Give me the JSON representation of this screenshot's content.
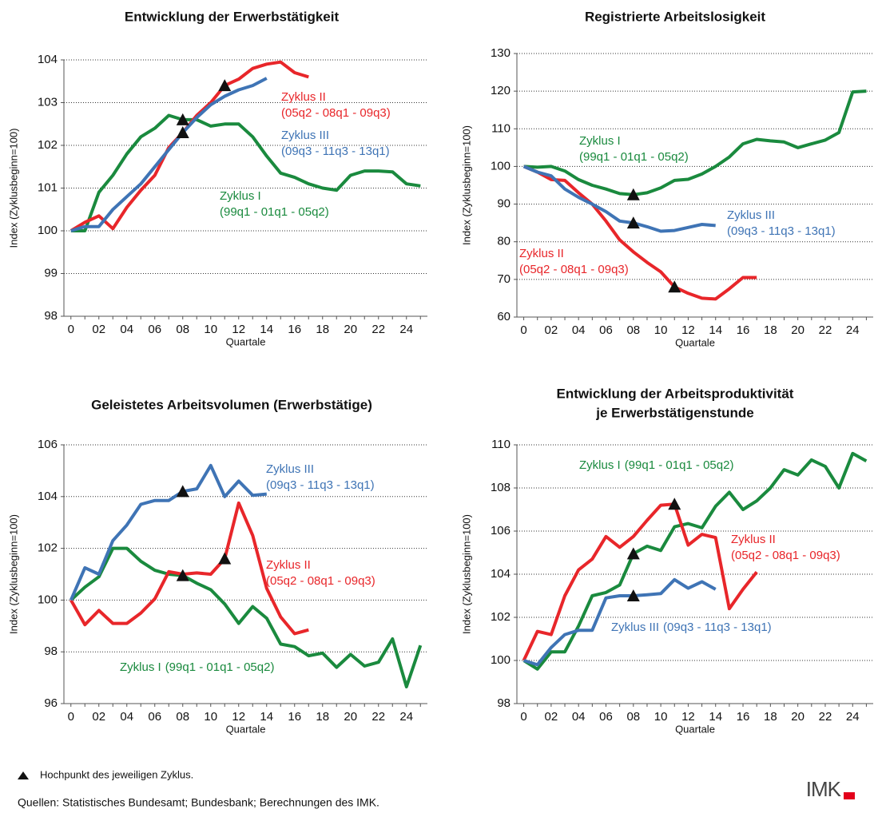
{
  "chart_data": [
    {
      "type": "line",
      "title": "Entwicklung der Erwerbstätigkeit",
      "x_label": "Quartale",
      "y_label": "Index (Zyklusbeginn=100)",
      "x": [
        0,
        1,
        2,
        3,
        4,
        5,
        6,
        7,
        8,
        9,
        10,
        11,
        12,
        13,
        14,
        15,
        16,
        17,
        18,
        19,
        20,
        21,
        22,
        23,
        24,
        25
      ],
      "xlim": [
        -0.5,
        25.5
      ],
      "xticks": [
        0,
        {
          "value": 2,
          "label": "02"
        },
        {
          "value": 4,
          "label": "04"
        },
        {
          "value": 6,
          "label": "06"
        },
        {
          "value": 8,
          "label": "08"
        },
        10,
        12,
        14,
        16,
        18,
        20,
        22,
        24
      ],
      "ylim": [
        98,
        104
      ],
      "yticks": [
        98,
        99,
        100,
        101,
        102,
        103,
        104
      ],
      "grid": true,
      "series": [
        {
          "name": "Zyklus I",
          "sub": "(99q1 - 01q1 - 05q2)",
          "color": "#1a8a3e",
          "peak_x": 8,
          "values": [
            100,
            100,
            100.9,
            101.3,
            101.8,
            102.2,
            102.4,
            102.7,
            102.6,
            102.6,
            102.45,
            102.5,
            102.5,
            102.2,
            101.75,
            101.35,
            101.25,
            101.1,
            101.0,
            100.95,
            101.3,
            101.4,
            101.4,
            101.38,
            101.1,
            101.05
          ]
        },
        {
          "name": "Zyklus II",
          "sub": "(05q2 - 08q1 - 09q3)",
          "color": "#e8262a",
          "peak_x": 11,
          "values": [
            100,
            100.2,
            100.35,
            100.05,
            100.55,
            100.95,
            101.3,
            101.95,
            102.3,
            102.7,
            103.0,
            103.4,
            103.55,
            103.8,
            103.9,
            103.95,
            103.7,
            103.6,
            null,
            null,
            null,
            null,
            null,
            null,
            null,
            null
          ]
        },
        {
          "name": "Zyklus III",
          "sub": "(09q3 - 11q3 - 13q1)",
          "color": "#3f74b5",
          "peak_x": 8,
          "values": [
            100,
            100.1,
            100.1,
            100.5,
            100.8,
            101.1,
            101.5,
            101.9,
            102.3,
            102.65,
            102.95,
            103.15,
            103.3,
            103.4,
            103.57,
            null,
            null,
            null,
            null,
            null,
            null,
            null,
            null,
            null,
            null,
            null
          ]
        }
      ]
    },
    {
      "type": "line",
      "title": "Registrierte Arbeitslosigkeit",
      "x_label": "Quartale",
      "y_label": "Index (Zyklusbeginn=100)",
      "x": [
        0,
        1,
        2,
        3,
        4,
        5,
        6,
        7,
        8,
        9,
        10,
        11,
        12,
        13,
        14,
        15,
        16,
        17,
        18,
        19,
        20,
        21,
        22,
        23,
        24,
        25
      ],
      "xlim": [
        -0.5,
        25.5
      ],
      "xticks": [
        0,
        {
          "value": 2,
          "label": "02"
        },
        {
          "value": 4,
          "label": "04"
        },
        {
          "value": 6,
          "label": "06"
        },
        {
          "value": 8,
          "label": "08"
        },
        10,
        12,
        14,
        16,
        18,
        20,
        22,
        24
      ],
      "ylim": [
        60,
        130
      ],
      "yticks": [
        60,
        70,
        80,
        90,
        100,
        110,
        120,
        130
      ],
      "grid": true,
      "series": [
        {
          "name": "Zyklus I",
          "sub": "(99q1 - 01q1 - 05q2)",
          "color": "#1a8a3e",
          "peak_x": 8,
          "values": [
            100,
            99.8,
            100,
            98.8,
            96.5,
            95,
            94,
            92.8,
            92.5,
            93,
            94.3,
            96.3,
            96.6,
            98,
            100,
            102.5,
            106,
            107.2,
            106.8,
            106.5,
            105,
            106,
            107,
            109,
            119.8,
            120
          ]
        },
        {
          "name": "Zyklus II",
          "sub": "(05q2 - 08q1 - 09q3)",
          "color": "#e8262a",
          "peak_x": 11,
          "values": [
            100,
            98.5,
            96.5,
            96.3,
            93,
            90,
            85.5,
            80.5,
            77.3,
            74.5,
            72,
            68,
            66.3,
            65,
            64.8,
            67.5,
            70.5,
            70.5,
            null,
            null,
            null,
            null,
            null,
            null,
            null,
            null
          ]
        },
        {
          "name": "Zyklus III",
          "sub": "(09q3 - 11q3 - 13q1)",
          "color": "#3f74b5",
          "peak_x": 8,
          "values": [
            100,
            98.5,
            97.5,
            94,
            91.8,
            90,
            88,
            85.5,
            85,
            84,
            82.8,
            83,
            83.8,
            84.6,
            84.3,
            null,
            null,
            null,
            null,
            null,
            null,
            null,
            null,
            null,
            null,
            null
          ]
        }
      ]
    },
    {
      "type": "line",
      "title": "Geleistetes Arbeitsvolumen (Erwerbstätige)",
      "x_label": "Quartale",
      "y_label": "Index (Zyklusbeginn=100)",
      "x": [
        0,
        1,
        2,
        3,
        4,
        5,
        6,
        7,
        8,
        9,
        10,
        11,
        12,
        13,
        14,
        15,
        16,
        17,
        18,
        19,
        20,
        21,
        22,
        23,
        24,
        25
      ],
      "xlim": [
        -0.5,
        25.5
      ],
      "xticks": [
        0,
        {
          "value": 2,
          "label": "02"
        },
        {
          "value": 4,
          "label": "04"
        },
        {
          "value": 6,
          "label": "06"
        },
        {
          "value": 8,
          "label": "08"
        },
        10,
        12,
        14,
        16,
        18,
        20,
        22,
        24
      ],
      "ylim": [
        96,
        106
      ],
      "yticks": [
        96,
        98,
        100,
        102,
        104,
        106
      ],
      "grid": true,
      "series": [
        {
          "name": "Zyklus I",
          "sub": "(99q1 - 01q1 - 05q2)",
          "color": "#1a8a3e",
          "peak_x": 8,
          "values": [
            100,
            100.5,
            100.9,
            102,
            102,
            101.5,
            101.15,
            101,
            100.95,
            100.65,
            100.4,
            99.85,
            99.1,
            99.75,
            99.3,
            98.3,
            98.2,
            97.85,
            97.95,
            97.4,
            97.9,
            97.45,
            97.6,
            98.5,
            96.65,
            98.25
          ]
        },
        {
          "name": "Zyklus II",
          "sub": "(05q2 - 08q1 - 09q3)",
          "color": "#e8262a",
          "peak_x": 11,
          "values": [
            100,
            99.05,
            99.6,
            99.1,
            99.1,
            99.5,
            100.05,
            101.1,
            101,
            101.05,
            101,
            101.6,
            103.75,
            102.5,
            100.45,
            99.35,
            98.7,
            98.85,
            null,
            null,
            null,
            null,
            null,
            null,
            null,
            null
          ]
        },
        {
          "name": "Zyklus III",
          "sub": "(09q3 - 11q3 - 13q1)",
          "color": "#3f74b5",
          "peak_x": 8,
          "values": [
            100,
            101.25,
            101,
            102.3,
            102.9,
            103.7,
            103.85,
            103.85,
            104.2,
            104.3,
            105.2,
            104,
            104.6,
            104.05,
            104.1,
            null,
            null,
            null,
            null,
            null,
            null,
            null,
            null,
            null,
            null,
            null
          ]
        }
      ]
    },
    {
      "type": "line",
      "title": [
        "Entwicklung der Arbeitsproduktivität",
        "je Erwerbstätigenstunde"
      ],
      "x_label": "Quartale",
      "y_label": "Index (Zyklusbeginn=100)",
      "x": [
        0,
        1,
        2,
        3,
        4,
        5,
        6,
        7,
        8,
        9,
        10,
        11,
        12,
        13,
        14,
        15,
        16,
        17,
        18,
        19,
        20,
        21,
        22,
        23,
        24,
        25
      ],
      "xlim": [
        -0.5,
        25.5
      ],
      "xticks": [
        0,
        {
          "value": 2,
          "label": "02"
        },
        {
          "value": 4,
          "label": "04"
        },
        {
          "value": 6,
          "label": "06"
        },
        {
          "value": 8,
          "label": "08"
        },
        10,
        12,
        14,
        16,
        18,
        20,
        22,
        24
      ],
      "ylim": [
        98,
        110
      ],
      "yticks": [
        98,
        100,
        102,
        104,
        106,
        108,
        110
      ],
      "grid": true,
      "series": [
        {
          "name": "Zyklus I",
          "sub": "(99q1 - 01q1 - 05q2)",
          "color": "#1a8a3e",
          "peak_x": 8,
          "values": [
            100,
            99.6,
            100.4,
            100.4,
            101.6,
            103,
            103.15,
            103.5,
            104.95,
            105.3,
            105.1,
            106.2,
            106.35,
            106.15,
            107.15,
            107.8,
            107,
            107.4,
            108,
            108.85,
            108.6,
            109.3,
            109,
            108,
            109.6,
            109.25
          ]
        },
        {
          "name": "Zyklus II",
          "sub": "(05q2 - 08q1 - 09q3)",
          "color": "#e8262a",
          "peak_x": 11,
          "values": [
            100,
            101.35,
            101.2,
            103,
            104.2,
            104.7,
            105.75,
            105.25,
            105.75,
            106.5,
            107.2,
            107.25,
            105.35,
            105.85,
            105.7,
            102.4,
            103.3,
            104.1,
            null,
            null,
            null,
            null,
            null,
            null,
            null,
            null
          ]
        },
        {
          "name": "Zyklus III",
          "sub": "(09q3 - 11q3 - 13q1)",
          "color": "#3f74b5",
          "peak_x": 8,
          "values": [
            100,
            99.8,
            100.6,
            101.2,
            101.4,
            101.4,
            102.9,
            103,
            103,
            103.05,
            103.1,
            103.75,
            103.35,
            103.65,
            103.3,
            null,
            null,
            null,
            null,
            null,
            null,
            null,
            null,
            null,
            null,
            null
          ]
        }
      ]
    }
  ],
  "legend_note": "Hochpunkt des jeweiligen Zyklus.",
  "source": "Quellen: Statistisches Bundesamt; Bundesbank; Berechnungen des IMK.",
  "logo": "IMK"
}
